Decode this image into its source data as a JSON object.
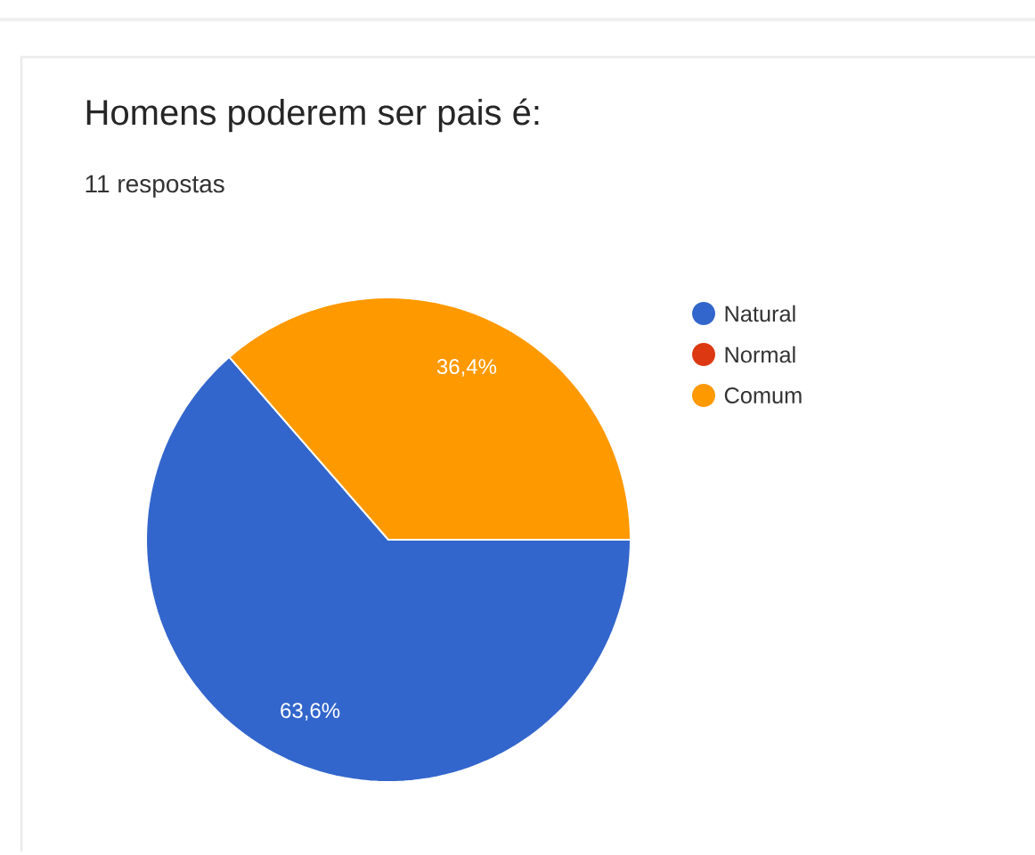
{
  "chart_data": {
    "type": "pie",
    "title": "Homens poderem ser pais é:",
    "subtitle": "11 respostas",
    "categories": [
      "Natural",
      "Normal",
      "Comum"
    ],
    "values": [
      63.6,
      0,
      36.4
    ],
    "colors": [
      "#3366cc",
      "#dc3912",
      "#ff9900"
    ],
    "value_labels": [
      "63,6%",
      null,
      "36,4%"
    ],
    "legend": "right"
  }
}
